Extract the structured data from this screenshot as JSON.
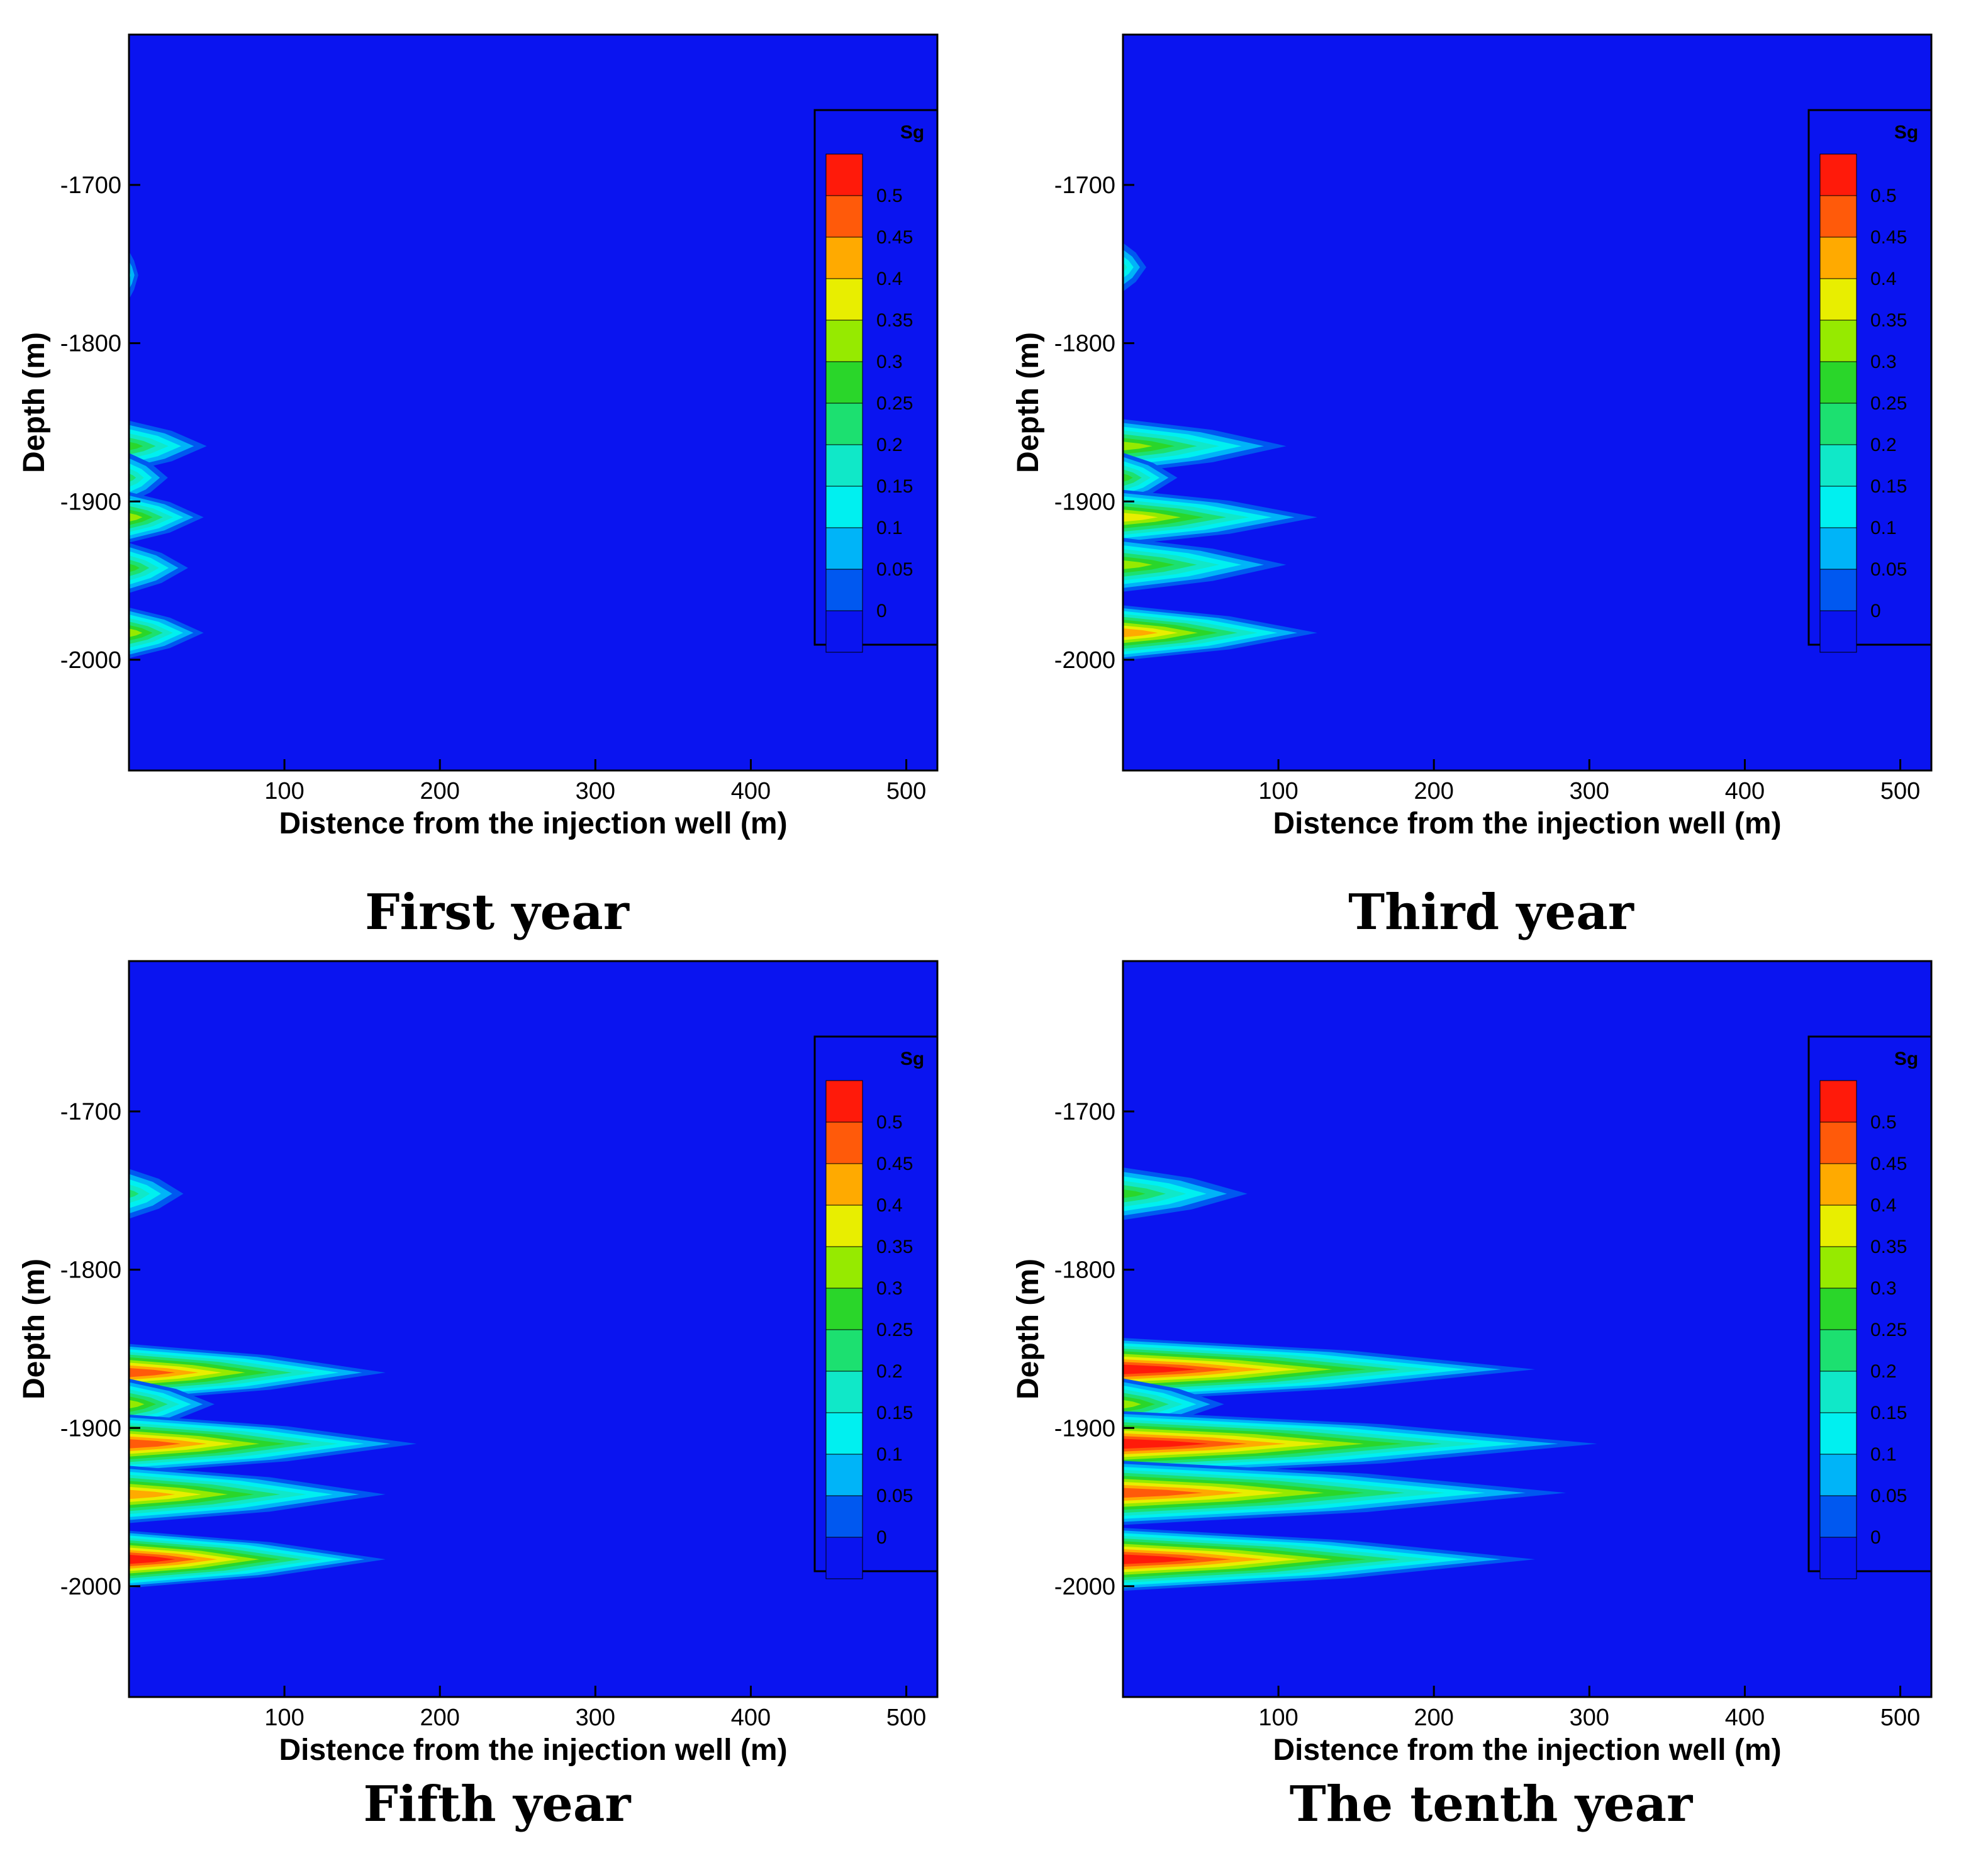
{
  "colors": {
    "background": "#0a14f0",
    "frame": "#000000"
  },
  "chart_data": [
    {
      "type": "heatmap",
      "caption": "First year",
      "xlabel": "Distence from the injection well (m)",
      "ylabel": "Depth (m)",
      "xlim": [
        0,
        520
      ],
      "ylim": [
        -2070,
        -1605
      ],
      "xticks": [
        "100",
        "200",
        "300",
        "400",
        "500"
      ],
      "yticks": [
        "-1700",
        "-1800",
        "-1900",
        "-2000"
      ],
      "legend": {
        "title": "Sg",
        "labels": [
          "0.5",
          "0.45",
          "0.4",
          "0.35",
          "0.3",
          "0.25",
          "0.2",
          "0.15",
          "0.1",
          "0.05",
          "0"
        ],
        "colors": [
          "#ff1a0a",
          "#ff5a0a",
          "#ffaa00",
          "#e8ee00",
          "#96ea00",
          "#2ad62a",
          "#1ce070",
          "#10e8c8",
          "#00f0f0",
          "#00b4f8",
          "#0058f0",
          "#0a14f0"
        ],
        "placement": "right"
      },
      "plumes": [
        {
          "depth": -1757,
          "length": 6,
          "sg": 0.1
        },
        {
          "depth": -1865,
          "length": 50,
          "sg": 0.25
        },
        {
          "depth": -1885,
          "length": 25,
          "sg": 0.2
        },
        {
          "depth": -1910,
          "length": 48,
          "sg": 0.3
        },
        {
          "depth": -1942,
          "length": 38,
          "sg": 0.25
        },
        {
          "depth": -1983,
          "length": 48,
          "sg": 0.3
        }
      ]
    },
    {
      "type": "heatmap",
      "caption": "Third year",
      "xlabel": "Distence from the injection well (m)",
      "ylabel": "Depth (m)",
      "xlim": [
        0,
        520
      ],
      "ylim": [
        -2070,
        -1605
      ],
      "xticks": [
        "100",
        "200",
        "300",
        "400",
        "500"
      ],
      "yticks": [
        "-1700",
        "-1800",
        "-1900",
        "-2000"
      ],
      "legend": {
        "title": "Sg",
        "labels": [
          "0.5",
          "0.45",
          "0.4",
          "0.35",
          "0.3",
          "0.25",
          "0.2",
          "0.15",
          "0.1",
          "0.05",
          "0"
        ],
        "colors": [
          "#ff1a0a",
          "#ff5a0a",
          "#ffaa00",
          "#e8ee00",
          "#96ea00",
          "#2ad62a",
          "#1ce070",
          "#10e8c8",
          "#00f0f0",
          "#00b4f8",
          "#0058f0",
          "#0a14f0"
        ],
        "placement": "right"
      },
      "plumes": [
        {
          "depth": -1752,
          "length": 15,
          "sg": 0.15
        },
        {
          "depth": -1865,
          "length": 105,
          "sg": 0.3
        },
        {
          "depth": -1885,
          "length": 35,
          "sg": 0.25
        },
        {
          "depth": -1910,
          "length": 125,
          "sg": 0.35
        },
        {
          "depth": -1940,
          "length": 105,
          "sg": 0.3
        },
        {
          "depth": -1983,
          "length": 125,
          "sg": 0.4
        }
      ]
    },
    {
      "type": "heatmap",
      "caption": "Fifth year",
      "xlabel": "Distence from the injection well (m)",
      "ylabel": "Depth (m)",
      "xlim": [
        0,
        520
      ],
      "ylim": [
        -2070,
        -1605
      ],
      "xticks": [
        "100",
        "200",
        "300",
        "400",
        "500"
      ],
      "yticks": [
        "-1700",
        "-1800",
        "-1900",
        "-2000"
      ],
      "legend": {
        "title": "Sg",
        "labels": [
          "0.5",
          "0.45",
          "0.4",
          "0.35",
          "0.3",
          "0.25",
          "0.2",
          "0.15",
          "0.1",
          "0.05",
          "0"
        ],
        "colors": [
          "#ff1a0a",
          "#ff5a0a",
          "#ffaa00",
          "#e8ee00",
          "#96ea00",
          "#2ad62a",
          "#1ce070",
          "#10e8c8",
          "#00f0f0",
          "#00b4f8",
          "#0058f0",
          "#0a14f0"
        ],
        "placement": "right"
      },
      "plumes": [
        {
          "depth": -1752,
          "length": 35,
          "sg": 0.2
        },
        {
          "depth": -1865,
          "length": 165,
          "sg": 0.45
        },
        {
          "depth": -1885,
          "length": 55,
          "sg": 0.3
        },
        {
          "depth": -1910,
          "length": 185,
          "sg": 0.45
        },
        {
          "depth": -1942,
          "length": 165,
          "sg": 0.4
        },
        {
          "depth": -1983,
          "length": 165,
          "sg": 0.5
        }
      ]
    },
    {
      "type": "heatmap",
      "caption": "The tenth year",
      "xlabel": "Distence from the injection well (m)",
      "ylabel": "Depth (m)",
      "xlim": [
        0,
        520
      ],
      "ylim": [
        -2070,
        -1605
      ],
      "xticks": [
        "100",
        "200",
        "300",
        "400",
        "500"
      ],
      "yticks": [
        "-1700",
        "-1800",
        "-1900",
        "-2000"
      ],
      "legend": {
        "title": "Sg",
        "labels": [
          "0.5",
          "0.45",
          "0.4",
          "0.35",
          "0.3",
          "0.25",
          "0.2",
          "0.15",
          "0.1",
          "0.05",
          "0"
        ],
        "colors": [
          "#ff1a0a",
          "#ff5a0a",
          "#ffaa00",
          "#e8ee00",
          "#96ea00",
          "#2ad62a",
          "#1ce070",
          "#10e8c8",
          "#00f0f0",
          "#00b4f8",
          "#0058f0",
          "#0a14f0"
        ],
        "placement": "right"
      },
      "plumes": [
        {
          "depth": -1752,
          "length": 80,
          "sg": 0.25
        },
        {
          "depth": -1863,
          "length": 265,
          "sg": 0.5
        },
        {
          "depth": -1885,
          "length": 65,
          "sg": 0.3
        },
        {
          "depth": -1910,
          "length": 305,
          "sg": 0.5
        },
        {
          "depth": -1941,
          "length": 285,
          "sg": 0.45
        },
        {
          "depth": -1983,
          "length": 265,
          "sg": 0.5
        }
      ]
    }
  ]
}
